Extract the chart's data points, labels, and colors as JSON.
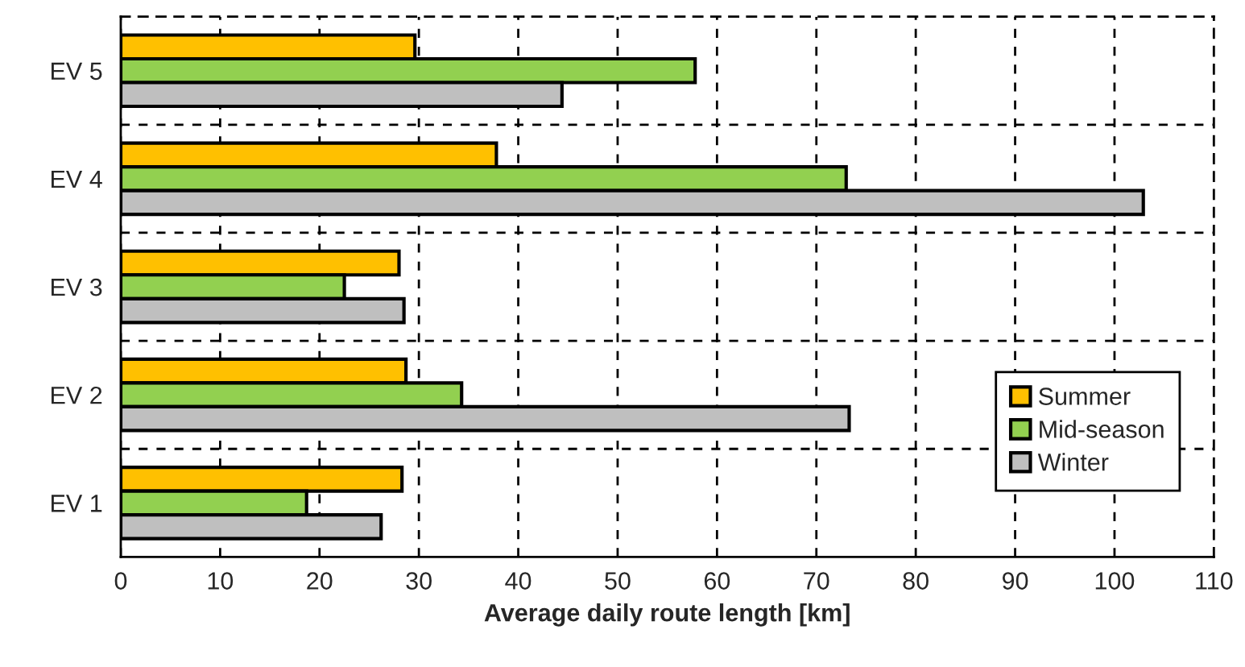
{
  "chart_data": {
    "type": "bar",
    "orientation": "horizontal",
    "xlabel": "Average daily route length [km]",
    "categories": [
      "EV 5",
      "EV 4",
      "EV 3",
      "EV 2",
      "EV 1"
    ],
    "series": [
      {
        "name": "Summer",
        "color": "#ffc000",
        "values": [
          29.6,
          37.8,
          28.0,
          28.7,
          28.3
        ]
      },
      {
        "name": "Mid-season",
        "color": "#92d050",
        "values": [
          57.8,
          73.0,
          22.5,
          34.3,
          18.7
        ]
      },
      {
        "name": "Winter",
        "color": "#bfbfbf",
        "values": [
          44.4,
          102.9,
          28.5,
          73.3,
          26.2
        ]
      }
    ],
    "xlim": [
      0,
      110
    ],
    "xticks": [
      0,
      10,
      20,
      30,
      40,
      50,
      60,
      70,
      80,
      90,
      100,
      110
    ],
    "grid": true,
    "legend": "bottom right"
  }
}
